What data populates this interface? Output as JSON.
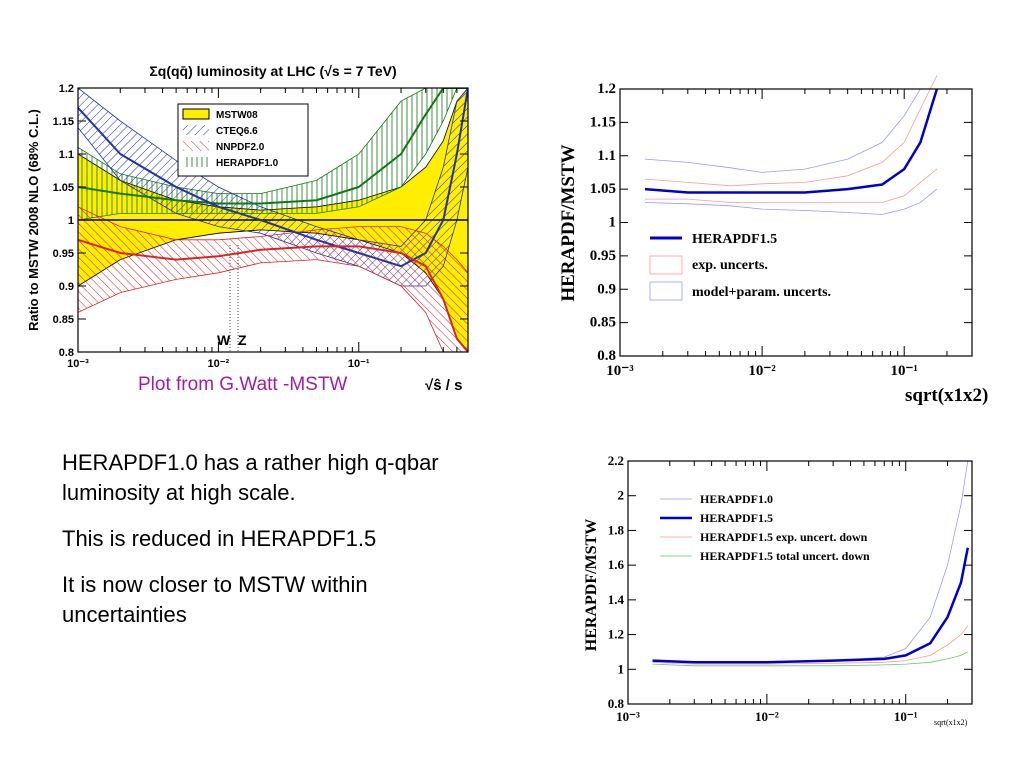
{
  "slide": {
    "credit": "Plot from G.Watt -MSTW",
    "notes": [
      "HERAPDF1.0 has a rather high q-qbar luminosity at high scale.",
      "This is reduced in HERAPDF1.5",
      "It is now closer to MSTW within uncertainties"
    ]
  },
  "colors": {
    "yellow_band": "#ffee00",
    "mstw": "#000000",
    "cteq": "#2233aa",
    "nnpdf": "#dd2222",
    "hera10": "#117711",
    "hera15": "#0000cc",
    "exp_band": "#ff9999",
    "model_band": "#9999ff",
    "total_down": "#66cc66",
    "credit": "#a020a0"
  },
  "chart_data": [
    {
      "type": "area",
      "title": "Σq(qq̄) luminosity at LHC (√s = 7 TeV)",
      "ylabel": "Ratio to MSTW 2008 NLO (68% C.L.)",
      "xlabel": "√ŝ / s",
      "xscale": "log",
      "xlim": [
        0.001,
        0.6
      ],
      "ylim": [
        0.8,
        1.2
      ],
      "x_ticks": [
        "10⁻³",
        "10⁻²",
        "10⁻¹"
      ],
      "y_ticks": [
        "0.8",
        "0.85",
        "0.9",
        "0.95",
        "1",
        "1.05",
        "1.1",
        "1.15",
        "1.2"
      ],
      "annotations": [
        "W",
        "Z"
      ],
      "legend_position": "top-center",
      "x": [
        0.001,
        0.002,
        0.005,
        0.01,
        0.02,
        0.05,
        0.1,
        0.2,
        0.3,
        0.4,
        0.5,
        0.6
      ],
      "series": [
        {
          "name": "MSTW08",
          "central": [
            1,
            1,
            1,
            1,
            1,
            1,
            1,
            1,
            1,
            1,
            1,
            1
          ],
          "upper": [
            1.1,
            1.06,
            1.03,
            1.02,
            1.015,
            1.02,
            1.03,
            1.05,
            1.08,
            1.12,
            1.18,
            1.2
          ],
          "lower": [
            0.9,
            0.94,
            0.97,
            0.98,
            0.985,
            0.98,
            0.97,
            0.95,
            0.92,
            0.88,
            0.82,
            0.8
          ]
        },
        {
          "name": "CTEQ6.6",
          "central": [
            1.17,
            1.1,
            1.05,
            1.02,
            1.0,
            0.97,
            0.95,
            0.93,
            0.95,
            1.0,
            1.1,
            1.2
          ],
          "upper": [
            1.2,
            1.15,
            1.09,
            1.05,
            1.02,
            0.99,
            0.97,
            0.96,
            1.0,
            1.08,
            1.18,
            1.2
          ],
          "lower": [
            1.14,
            1.06,
            1.01,
            0.99,
            0.98,
            0.95,
            0.93,
            0.9,
            0.9,
            0.93,
            1.0,
            1.08
          ]
        },
        {
          "name": "NNPDF2.0",
          "central": [
            0.97,
            0.95,
            0.94,
            0.945,
            0.955,
            0.96,
            0.96,
            0.95,
            0.93,
            0.88,
            0.82,
            0.8
          ],
          "upper": [
            1.02,
            0.99,
            0.97,
            0.97,
            0.975,
            0.985,
            0.99,
            0.99,
            0.98,
            0.96,
            0.94,
            0.92
          ],
          "lower": [
            0.86,
            0.89,
            0.91,
            0.92,
            0.935,
            0.94,
            0.93,
            0.9,
            0.86,
            0.8,
            0.8,
            0.8
          ]
        },
        {
          "name": "HERAPDF1.0",
          "central": [
            1.05,
            1.04,
            1.03,
            1.025,
            1.025,
            1.03,
            1.05,
            1.1,
            1.16,
            1.2,
            1.2,
            1.2
          ],
          "upper": [
            1.11,
            1.07,
            1.05,
            1.04,
            1.04,
            1.06,
            1.1,
            1.18,
            1.2,
            1.2,
            1.2,
            1.2
          ],
          "lower": [
            1.0,
            1.01,
            1.01,
            1.01,
            1.01,
            1.01,
            1.02,
            1.05,
            1.1,
            1.15,
            1.2,
            1.2
          ]
        }
      ]
    },
    {
      "type": "line",
      "ylabel": "HERAPDF/MSTW",
      "xlabel": "sqrt(x1x2)",
      "xscale": "log",
      "xlim": [
        0.001,
        0.3
      ],
      "ylim": [
        0.8,
        1.2
      ],
      "x_ticks": [
        "10⁻³",
        "10⁻²",
        "10⁻¹"
      ],
      "y_ticks": [
        "0.8",
        "0.85",
        "0.9",
        "0.95",
        "1",
        "1.05",
        "1.1",
        "1.15",
        "1.2"
      ],
      "legend_position": "center-right",
      "x": [
        0.0015,
        0.003,
        0.006,
        0.01,
        0.02,
        0.04,
        0.07,
        0.1,
        0.13,
        0.17
      ],
      "series": [
        {
          "name": "HERAPDF1.5",
          "values": [
            1.05,
            1.045,
            1.045,
            1.045,
            1.045,
            1.05,
            1.057,
            1.08,
            1.12,
            1.2
          ]
        },
        {
          "name": "exp. uncerts.",
          "upper": [
            1.065,
            1.06,
            1.055,
            1.058,
            1.06,
            1.07,
            1.09,
            1.12,
            1.17,
            1.22
          ],
          "lower": [
            1.035,
            1.035,
            1.03,
            1.03,
            1.03,
            1.03,
            1.03,
            1.04,
            1.06,
            1.08
          ]
        },
        {
          "name": "model+param. uncerts.",
          "upper": [
            1.095,
            1.09,
            1.082,
            1.075,
            1.08,
            1.095,
            1.12,
            1.16,
            1.2,
            1.2
          ],
          "lower": [
            1.03,
            1.028,
            1.025,
            1.02,
            1.018,
            1.015,
            1.012,
            1.02,
            1.03,
            1.05
          ]
        }
      ]
    },
    {
      "type": "line",
      "ylabel": "HERAPDF/MSTW",
      "xlabel": "sqrt(x1x2)",
      "xscale": "log",
      "xlim": [
        0.001,
        0.3
      ],
      "ylim": [
        0.8,
        2.2
      ],
      "x_ticks": [
        "10⁻³",
        "10⁻²",
        "10⁻¹"
      ],
      "y_ticks": [
        "0.8",
        "1",
        "1.2",
        "1.4",
        "1.6",
        "1.8",
        "2",
        "2.2"
      ],
      "legend_position": "top-right",
      "x": [
        0.0015,
        0.003,
        0.01,
        0.03,
        0.07,
        0.1,
        0.15,
        0.2,
        0.25,
        0.28
      ],
      "series": [
        {
          "name": "HERAPDF1.0",
          "values": [
            1.05,
            1.04,
            1.04,
            1.05,
            1.07,
            1.12,
            1.3,
            1.6,
            1.95,
            2.2
          ]
        },
        {
          "name": "HERAPDF1.5",
          "values": [
            1.05,
            1.04,
            1.04,
            1.05,
            1.06,
            1.08,
            1.15,
            1.3,
            1.5,
            1.7
          ]
        },
        {
          "name": "HERAPDF1.5 exp. uncert. down",
          "values": [
            1.04,
            1.03,
            1.03,
            1.035,
            1.04,
            1.05,
            1.08,
            1.14,
            1.2,
            1.25
          ]
        },
        {
          "name": "HERAPDF1.5 total uncert. down",
          "values": [
            1.03,
            1.02,
            1.02,
            1.02,
            1.025,
            1.03,
            1.04,
            1.06,
            1.08,
            1.1
          ]
        }
      ]
    }
  ]
}
